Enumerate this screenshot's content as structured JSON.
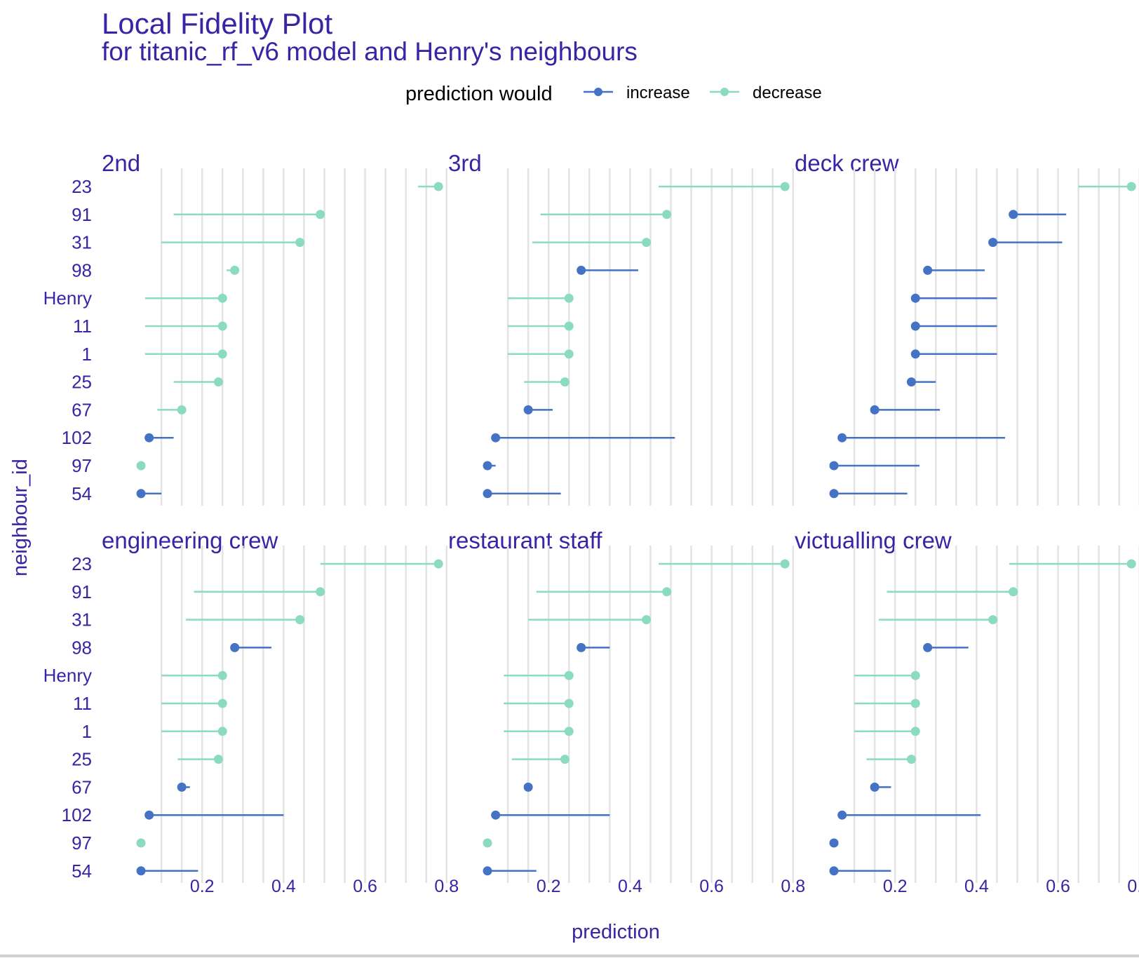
{
  "chart_data": {
    "type": "dumbbell",
    "title": "Local Fidelity Plot",
    "subtitle": "for titanic_rf_v6 model and Henry's neighbours",
    "xlabel": "prediction",
    "ylabel": "neighbour_id",
    "xlim": [
      0.0,
      0.8
    ],
    "x_ticks": [
      "0.2",
      "0.4",
      "0.6",
      "0.8"
    ],
    "x_tick_values": [
      0.2,
      0.4,
      0.6,
      0.8
    ],
    "grid": true,
    "legend": {
      "title": "prediction would",
      "placement": "top",
      "entries": [
        {
          "key": "increase",
          "label": "increase",
          "color": "#4472c4"
        },
        {
          "key": "decrease",
          "label": "decrease",
          "color": "#8bdcbe"
        }
      ]
    },
    "neighbour_ids": [
      "23",
      "91",
      "31",
      "98",
      "Henry",
      "11",
      "1",
      "25",
      "67",
      "102",
      "97",
      "54"
    ],
    "panels": [
      {
        "label": "2nd",
        "observed": [
          0.78,
          0.49,
          0.44,
          0.28,
          0.25,
          0.25,
          0.25,
          0.24,
          0.15,
          0.07,
          0.05,
          0.05
        ],
        "changed": [
          0.73,
          0.13,
          0.1,
          0.26,
          0.06,
          0.06,
          0.06,
          0.13,
          0.09,
          0.13,
          0.04,
          0.1
        ]
      },
      {
        "label": "3rd",
        "observed": [
          0.78,
          0.49,
          0.44,
          0.28,
          0.25,
          0.25,
          0.25,
          0.24,
          0.15,
          0.07,
          0.05,
          0.05
        ],
        "changed": [
          0.47,
          0.18,
          0.16,
          0.42,
          0.1,
          0.1,
          0.1,
          0.14,
          0.21,
          0.51,
          0.07,
          0.23
        ]
      },
      {
        "label": "deck crew",
        "observed": [
          0.78,
          0.49,
          0.44,
          0.28,
          0.25,
          0.25,
          0.25,
          0.24,
          0.15,
          0.07,
          0.05,
          0.05
        ],
        "changed": [
          0.65,
          0.62,
          0.61,
          0.42,
          0.45,
          0.45,
          0.45,
          0.3,
          0.31,
          0.47,
          0.26,
          0.23
        ]
      },
      {
        "label": "engineering crew",
        "observed": [
          0.78,
          0.49,
          0.44,
          0.28,
          0.25,
          0.25,
          0.25,
          0.24,
          0.15,
          0.07,
          0.05,
          0.05
        ],
        "changed": [
          0.49,
          0.18,
          0.16,
          0.37,
          0.1,
          0.1,
          0.1,
          0.14,
          0.17,
          0.4,
          0.05,
          0.19
        ]
      },
      {
        "label": "restaurant staff",
        "observed": [
          0.78,
          0.49,
          0.44,
          0.28,
          0.25,
          0.25,
          0.25,
          0.24,
          0.15,
          0.07,
          0.05,
          0.05
        ],
        "changed": [
          0.47,
          0.17,
          0.15,
          0.35,
          0.09,
          0.09,
          0.09,
          0.11,
          0.16,
          0.35,
          0.05,
          0.17
        ]
      },
      {
        "label": "victualling crew",
        "observed": [
          0.78,
          0.49,
          0.44,
          0.28,
          0.25,
          0.25,
          0.25,
          0.24,
          0.15,
          0.07,
          0.05,
          0.05
        ],
        "changed": [
          0.48,
          0.18,
          0.16,
          0.38,
          0.1,
          0.1,
          0.1,
          0.13,
          0.19,
          0.41,
          0.06,
          0.19
        ]
      }
    ]
  }
}
